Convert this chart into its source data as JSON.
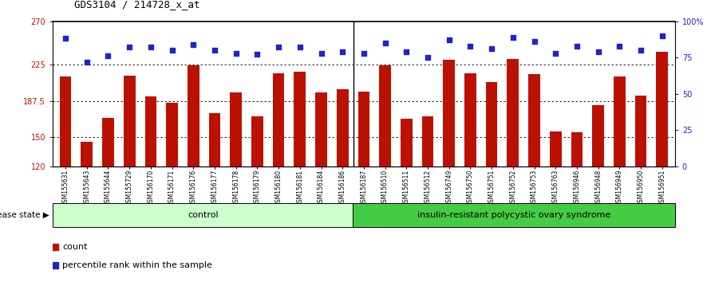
{
  "title": "GDS3104 / 214728_x_at",
  "samples": [
    "GSM155631",
    "GSM155643",
    "GSM155644",
    "GSM155729",
    "GSM156170",
    "GSM156171",
    "GSM156176",
    "GSM156177",
    "GSM156178",
    "GSM156179",
    "GSM156180",
    "GSM156181",
    "GSM156184",
    "GSM156186",
    "GSM156187",
    "GSM156510",
    "GSM156511",
    "GSM156512",
    "GSM156749",
    "GSM156750",
    "GSM156751",
    "GSM156752",
    "GSM156753",
    "GSM156763",
    "GSM156946",
    "GSM156948",
    "GSM156949",
    "GSM156950",
    "GSM156951"
  ],
  "counts": [
    213,
    145,
    170,
    214,
    192,
    186,
    224,
    175,
    196,
    172,
    216,
    218,
    196,
    200,
    197,
    224,
    169,
    172,
    230,
    216,
    207,
    231,
    215,
    156,
    155,
    183,
    213,
    193,
    238
  ],
  "percentiles": [
    88,
    72,
    76,
    82,
    82,
    80,
    84,
    80,
    78,
    77,
    82,
    82,
    78,
    79,
    78,
    85,
    79,
    75,
    87,
    83,
    81,
    89,
    86,
    78,
    83,
    79,
    83,
    80,
    90
  ],
  "control_count": 14,
  "bar_color": "#bb1100",
  "dot_color": "#2222cc",
  "ylim_left": [
    120,
    270
  ],
  "ylim_right": [
    0,
    100
  ],
  "yticks_left": [
    120,
    150,
    187.5,
    225,
    270
  ],
  "ytick_labels_left": [
    "120",
    "150",
    "187.5",
    "225",
    "270"
  ],
  "yticks_right": [
    0,
    25,
    50,
    75,
    100
  ],
  "ytick_labels_right": [
    "0",
    "25",
    "50",
    "75",
    "100%"
  ],
  "grid_lines": [
    150,
    187.5,
    225
  ],
  "control_label": "control",
  "disease_label": "insulin-resistant polycystic ovary syndrome",
  "disease_state_label": "disease state",
  "legend_count_label": "count",
  "legend_percentile_label": "percentile rank within the sample",
  "control_bg": "#ccffcc",
  "disease_bg": "#44cc44",
  "title_fontsize": 9,
  "tick_fontsize": 7,
  "xtick_fontsize": 5.5
}
